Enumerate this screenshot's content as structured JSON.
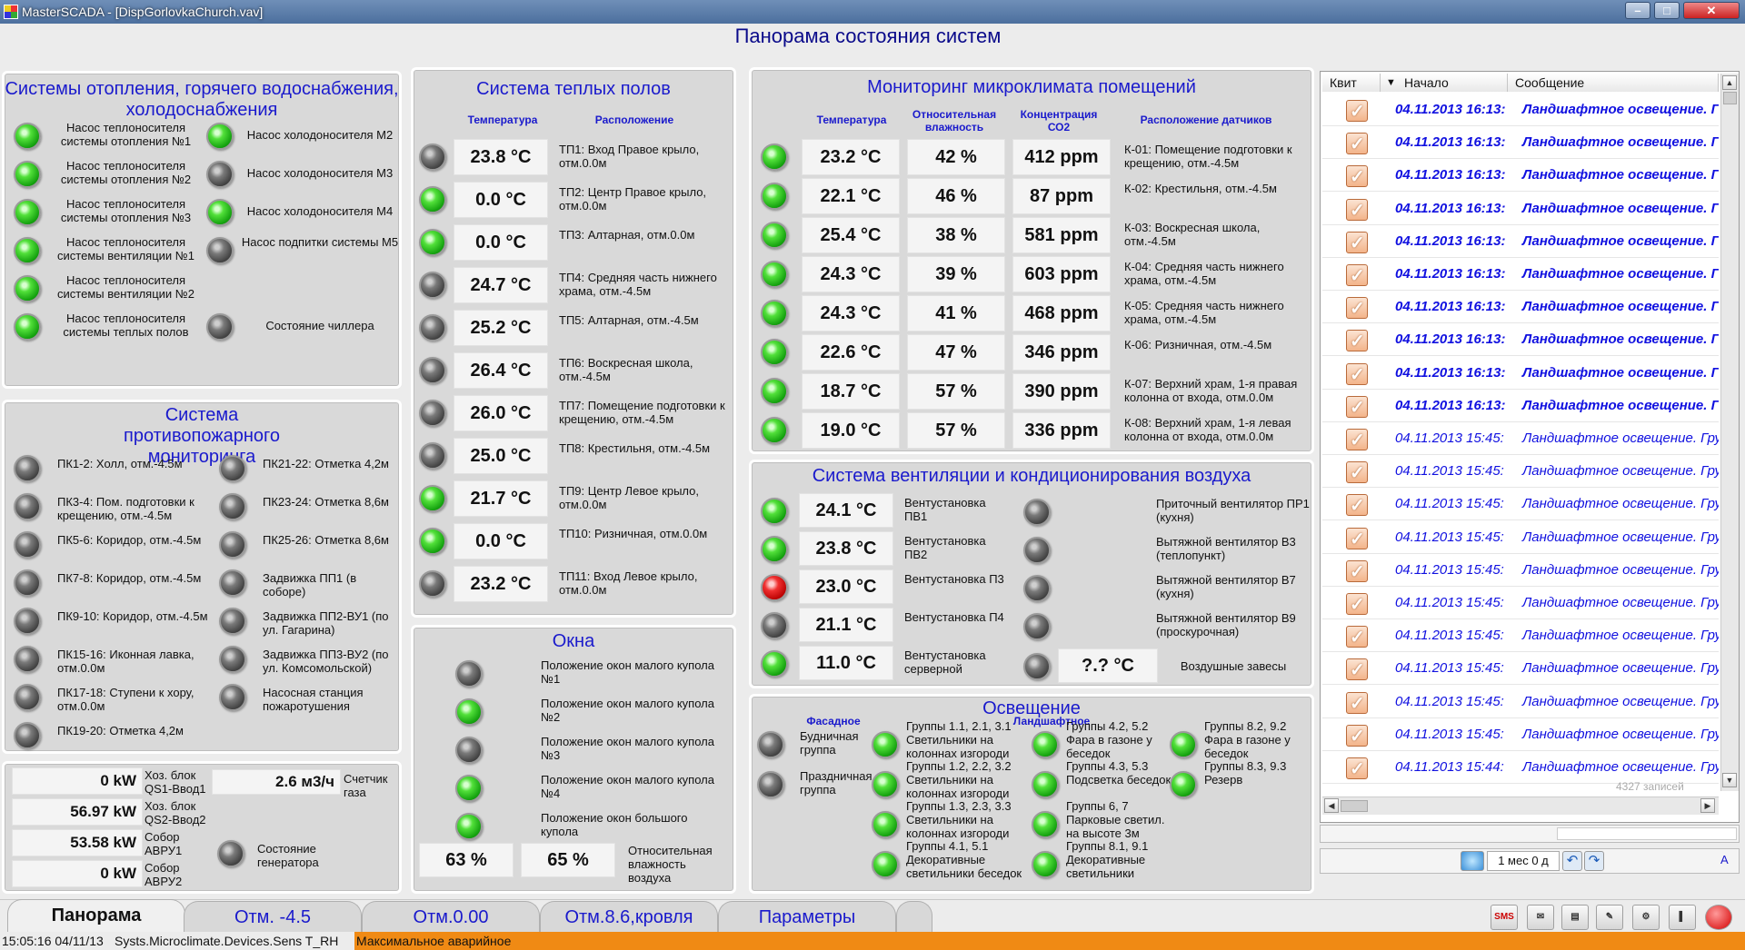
{
  "window": {
    "title": "MasterSCADA - [DispGorlovkaChurch.vav]"
  },
  "page_title": "Панорама состояния систем",
  "heating": {
    "title": "Системы отопления, горячего водоснабжения, холодоснабжения",
    "left": [
      {
        "label": "Насос теплоносителя системы отопления №1",
        "on": true
      },
      {
        "label": "Насос теплоносителя системы отопления №2",
        "on": true
      },
      {
        "label": "Насос теплоносителя системы отопления №3",
        "on": true
      },
      {
        "label": "Насос теплоносителя системы вентиляции №1",
        "on": true
      },
      {
        "label": "Насос теплоносителя системы вентиляции №2",
        "on": true
      },
      {
        "label": "Насос теплоносителя системы теплых полов",
        "on": true
      }
    ],
    "right": [
      {
        "label": "Насос холодоносителя М2",
        "on": true
      },
      {
        "label": "Насос холодоносителя М3",
        "on": false
      },
      {
        "label": "Насос холодоносителя М4",
        "on": true
      },
      {
        "label": "Насос подпитки системы М5",
        "on": false
      },
      {
        "label": "Состояние чиллера",
        "on": false,
        "row": 5
      }
    ]
  },
  "fire": {
    "title": "Система противопожарного мониторинга",
    "left": [
      "ПК1-2: Холл, отм.-4.5м",
      "ПК3-4: Пом. подготовки к крещению, отм.-4.5м",
      "ПК5-6: Коридор, отм.-4.5м",
      "ПК7-8: Коридор, отм.-4.5м",
      "ПК9-10: Коридор, отм.-4.5м",
      "ПК15-16: Иконная лавка, отм.0.0м",
      "ПК17-18: Ступени к хору, отм.0.0м",
      "ПК19-20: Отметка 4,2м"
    ],
    "right": [
      "ПК21-22: Отметка 4,2м",
      "ПК23-24: Отметка 8,6м",
      "ПК25-26: Отметка 8,6м",
      "Задвижка ПП1 (в соборе)",
      "Задвижка ПП2-ВУ1 (по ул. Гагарина)",
      "Задвижка ПП3-ВУ2 (по ул. Комсомольской)",
      "Насосная станция пожаротушения"
    ]
  },
  "power": {
    "rows": [
      {
        "value": "0 kW",
        "label": "Хоз. блок QS1-Ввод1"
      },
      {
        "value": "56.97 kW",
        "label": "Хоз. блок QS2-Ввод2"
      },
      {
        "value": "53.58 kW",
        "label": "Собор АВРУ1"
      },
      {
        "value": "0 kW",
        "label": "Собор АВРУ2"
      }
    ],
    "gas_value": "2.6 м3/ч",
    "gas_label": "Счетчик газа",
    "generator_label": "Состояние генератора",
    "generator_on": false
  },
  "floors": {
    "title": "Система теплых полов",
    "col_temp": "Температура",
    "col_loc": "Расположение",
    "rows": [
      {
        "on": false,
        "value": "23.8 °С",
        "loc": "ТП1: Вход Правое крыло, отм.0.0м"
      },
      {
        "on": true,
        "value": "0.0 °С",
        "loc": "ТП2: Центр Правое крыло, отм.0.0м"
      },
      {
        "on": true,
        "value": "0.0 °С",
        "loc": "ТП3: Алтарная, отм.0.0м"
      },
      {
        "on": false,
        "value": "24.7 °С",
        "loc": "ТП4: Средняя часть нижнего храма, отм.-4.5м"
      },
      {
        "on": false,
        "value": "25.2 °С",
        "loc": "ТП5: Алтарная, отм.-4.5м"
      },
      {
        "on": false,
        "value": "26.4 °С",
        "loc": "ТП6: Воскресная школа, отм.-4.5м"
      },
      {
        "on": false,
        "value": "26.0 °С",
        "loc": "ТП7: Помещение подготовки к крещению, отм.-4.5м"
      },
      {
        "on": false,
        "value": "25.0 °С",
        "loc": "ТП8: Крестильня, отм.-4.5м"
      },
      {
        "on": true,
        "value": "21.7 °С",
        "loc": "ТП9: Центр Левое крыло, отм.0.0м"
      },
      {
        "on": true,
        "value": "0.0 °С",
        "loc": "ТП10: Ризничная, отм.0.0м"
      },
      {
        "on": false,
        "value": "23.2 °С",
        "loc": "ТП11: Вход Левое крыло, отм.0.0м"
      }
    ]
  },
  "windows": {
    "title": "Окна",
    "rows": [
      {
        "on": false,
        "label": "Положение окон малого купола №1"
      },
      {
        "on": true,
        "label": "Положение окон малого купола №2"
      },
      {
        "on": false,
        "label": "Положение окон малого купола №3"
      },
      {
        "on": true,
        "label": "Положение окон малого купола №4"
      },
      {
        "on": true,
        "label": "Положение окон большого купола"
      }
    ],
    "hum1": "63 %",
    "hum2": "65 %",
    "hum_label": "Относительная влажность воздуха"
  },
  "climate": {
    "title": "Мониторинг микроклимата помещений",
    "col_temp": "Температура",
    "col_hum": "Относительная влажность",
    "col_co2": "Концентрация СО2",
    "col_loc": "Расположение датчиков",
    "rows": [
      {
        "t": "23.2 °С",
        "h": "42 %",
        "c": "412 ppm",
        "loc": "К-01: Помещение подготовки к крещению, отм.-4.5м"
      },
      {
        "t": "22.1 °С",
        "h": "46 %",
        "c": "87 ppm",
        "loc": "К-02: Крестильня, отм.-4.5м"
      },
      {
        "t": "25.4 °С",
        "h": "38 %",
        "c": "581 ppm",
        "loc": "К-03: Воскресная школа, отм.-4.5м"
      },
      {
        "t": "24.3 °С",
        "h": "39 %",
        "c": "603 ppm",
        "loc": "К-04: Средняя часть нижнего храма, отм.-4.5м"
      },
      {
        "t": "24.3 °С",
        "h": "41 %",
        "c": "468 ppm",
        "loc": "К-05: Средняя часть нижнего храма, отм.-4.5м"
      },
      {
        "t": "22.6 °С",
        "h": "47 %",
        "c": "346 ppm",
        "loc": "К-06: Ризничная, отм.-4.5м"
      },
      {
        "t": "18.7 °С",
        "h": "57 %",
        "c": "390 ppm",
        "loc": "К-07: Верхний храм, 1-я правая колонна от входа, отм.0.0м"
      },
      {
        "t": "19.0 °С",
        "h": "57 %",
        "c": "336 ppm",
        "loc": "К-08: Верхний храм, 1-я левая колонна от входа, отм.0.0м"
      }
    ]
  },
  "vent": {
    "title": "Система вентиляции и кондиционирования воздуха",
    "units": [
      {
        "state": "on",
        "value": "24.1 °С",
        "label": "Вентустановка ПВ1"
      },
      {
        "state": "on",
        "value": "23.8 °С",
        "label": "Вентустановка ПВ2"
      },
      {
        "state": "alarm",
        "value": "23.0 °С",
        "label": "Вентустановка П3"
      },
      {
        "state": "off",
        "value": "21.1 °С",
        "label": "Вентустановка П4"
      },
      {
        "state": "on",
        "value": "11.0 °С",
        "label": "Вентустановка серверной"
      }
    ],
    "fans": [
      {
        "on": false,
        "label": "Приточный вентилятор ПР1 (кухня)"
      },
      {
        "on": false,
        "label": "Вытяжной вентилятор В3 (теплопункт)"
      },
      {
        "on": false,
        "label": "Вытяжной вентилятор В7 (кухня)"
      },
      {
        "on": false,
        "label": "Вытяжной вентилятор В9 (проскурочная)"
      }
    ],
    "curtain_value": "?.? °С",
    "curtain_label": "Воздушные завесы"
  },
  "light": {
    "title": "Освещение",
    "facade": "Фасадное",
    "landscape": "Ландшафтное",
    "facade_items": [
      {
        "on": false,
        "label": "Будничная группа"
      },
      {
        "on": false,
        "label": "Праздничная группа"
      }
    ],
    "col1": [
      {
        "on": true,
        "label": "Группы 1.1, 2.1, 3.1 Светильники на колоннах изгороди"
      },
      {
        "on": true,
        "label": "Группы 1.2, 2.2, 3.2 Светильники на колоннах изгороди"
      },
      {
        "on": true,
        "label": "Группы 1.3, 2.3, 3.3 Светильники на колоннах изгороди"
      },
      {
        "on": true,
        "label": "Группы 4.1, 5.1 Декоративные светильники беседок"
      }
    ],
    "col2": [
      {
        "on": true,
        "label": "Группы 4.2, 5.2 Фара в газоне у беседок"
      },
      {
        "on": true,
        "label": "Группы 4.3, 5.3 Подсветка беседок"
      },
      {
        "on": true,
        "label": "Группы 6, 7 Парковые светил. на высоте 3м"
      },
      {
        "on": true,
        "label": "Группы 8.1, 9.1 Декоративные светильники"
      }
    ],
    "col3": [
      {
        "on": true,
        "label": "Группы 8.2, 9.2 Фара в газоне у беседок"
      },
      {
        "on": true,
        "label": "Группы 8.3, 9.3 Резерв"
      }
    ]
  },
  "events": {
    "col_ack": "Квит",
    "col_start": "Начало",
    "col_msg": "Сообщение",
    "rows": [
      {
        "time": "04.11.2013 16:13:",
        "msg": "Ландшафтное освещение. Гр",
        "bold": true
      },
      {
        "time": "04.11.2013 16:13:",
        "msg": "Ландшафтное освещение. Гр",
        "bold": true
      },
      {
        "time": "04.11.2013 16:13:",
        "msg": "Ландшафтное освещение. Гр",
        "bold": true
      },
      {
        "time": "04.11.2013 16:13:",
        "msg": "Ландшафтное освещение. Гр",
        "bold": true
      },
      {
        "time": "04.11.2013 16:13:",
        "msg": "Ландшафтное освещение. Гр",
        "bold": true
      },
      {
        "time": "04.11.2013 16:13:",
        "msg": "Ландшафтное освещение. Гр",
        "bold": true
      },
      {
        "time": "04.11.2013 16:13:",
        "msg": "Ландшафтное освещение. Гр",
        "bold": true
      },
      {
        "time": "04.11.2013 16:13:",
        "msg": "Ландшафтное освещение. Гр",
        "bold": true
      },
      {
        "time": "04.11.2013 16:13:",
        "msg": "Ландшафтное освещение. Гр",
        "bold": true
      },
      {
        "time": "04.11.2013 16:13:",
        "msg": "Ландшафтное освещение. Гр",
        "bold": true
      },
      {
        "time": "04.11.2013 15:45:",
        "msg": "Ландшафтное освещение. Гру",
        "bold": false
      },
      {
        "time": "04.11.2013 15:45:",
        "msg": "Ландшафтное освещение. Гру",
        "bold": false
      },
      {
        "time": "04.11.2013 15:45:",
        "msg": "Ландшафтное освещение. Гру",
        "bold": false
      },
      {
        "time": "04.11.2013 15:45:",
        "msg": "Ландшафтное освещение. Гру",
        "bold": false
      },
      {
        "time": "04.11.2013 15:45:",
        "msg": "Ландшафтное освещение. Гру",
        "bold": false
      },
      {
        "time": "04.11.2013 15:45:",
        "msg": "Ландшафтное освещение. Гру",
        "bold": false
      },
      {
        "time": "04.11.2013 15:45:",
        "msg": "Ландшафтное освещение. Гру",
        "bold": false
      },
      {
        "time": "04.11.2013 15:45:",
        "msg": "Ландшафтное освещение. Гру",
        "bold": false
      },
      {
        "time": "04.11.2013 15:45:",
        "msg": "Ландшафтное освещение. Гру",
        "bold": false
      },
      {
        "time": "04.11.2013 15:45:",
        "msg": "Ландшафтное освещение. Гру",
        "bold": false
      },
      {
        "time": "04.11.2013 15:44:",
        "msg": "Ландшафтное освещение. Гру",
        "bold": false
      }
    ],
    "count": "4327",
    "count_label": "записей",
    "period": "1 мес 0 д",
    "lang": "A"
  },
  "tabs": [
    "Панорама",
    "Отм. -4.5",
    "Отм.0.00",
    "Отм.8.6,кровля",
    "Параметры"
  ],
  "toolbar": {
    "sms": "SMS"
  },
  "status": {
    "time": "15:05:16 04/11/13",
    "source": "Systs.Microclimate.Devices.Sens T_RH",
    "message": "Максимальное аварийное"
  },
  "colors": {
    "accent_blue": "#1a1acc",
    "status_alarm": "#f08a14",
    "event_text": "#1010e0"
  }
}
